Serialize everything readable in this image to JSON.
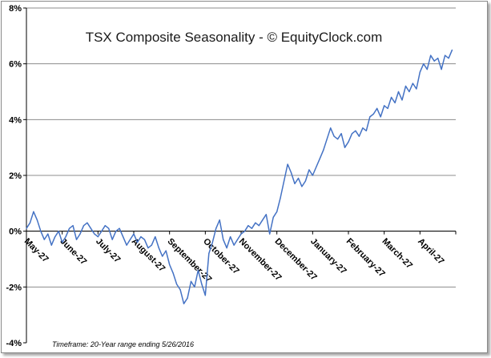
{
  "chart_data": {
    "type": "line",
    "title": "TSX Composite Seasonality - © EquityClock.com",
    "footnote": "Timeframe: 20-Year range ending 5/26/2016",
    "xlabel": "",
    "ylabel": "",
    "ylim": [
      -4,
      8
    ],
    "yticks": [
      {
        "value": 8,
        "label": "8%"
      },
      {
        "value": 6,
        "label": "6%"
      },
      {
        "value": 4,
        "label": "4%"
      },
      {
        "value": 2,
        "label": "2%"
      },
      {
        "value": 0,
        "label": "0%"
      },
      {
        "value": -2,
        "label": "-2%"
      },
      {
        "value": -4,
        "label": "-4%"
      }
    ],
    "xticks": [
      "May-27",
      "June-27",
      "July-27",
      "August-27",
      "September-27",
      "October-27",
      "November-27",
      "December-27",
      "January-27",
      "February-27",
      "March-27",
      "April-27"
    ],
    "grid": "horizontal",
    "line_color": "#4472C4",
    "series": [
      {
        "name": "",
        "x": [
          0,
          0.1,
          0.2,
          0.3,
          0.4,
          0.5,
          0.6,
          0.7,
          0.8,
          0.9,
          1.0,
          1.1,
          1.2,
          1.3,
          1.4,
          1.5,
          1.6,
          1.7,
          1.8,
          1.9,
          2.0,
          2.1,
          2.2,
          2.3,
          2.4,
          2.5,
          2.6,
          2.7,
          2.8,
          2.9,
          3.0,
          3.1,
          3.2,
          3.3,
          3.4,
          3.5,
          3.6,
          3.7,
          3.8,
          3.9,
          4.0,
          4.1,
          4.2,
          4.3,
          4.4,
          4.5,
          4.6,
          4.7,
          4.8,
          4.9,
          5.0,
          5.1,
          5.2,
          5.3,
          5.4,
          5.5,
          5.6,
          5.7,
          5.8,
          5.9,
          6.0,
          6.1,
          6.2,
          6.3,
          6.4,
          6.5,
          6.6,
          6.7,
          6.8,
          6.9,
          7.0,
          7.1,
          7.2,
          7.3,
          7.4,
          7.5,
          7.6,
          7.7,
          7.8,
          7.9,
          8.0,
          8.1,
          8.2,
          8.3,
          8.4,
          8.5,
          8.6,
          8.7,
          8.8,
          8.9,
          9.0,
          9.1,
          9.2,
          9.3,
          9.4,
          9.5,
          9.6,
          9.7,
          9.8,
          9.9,
          10.0,
          10.1,
          10.2,
          10.3,
          10.4,
          10.5,
          10.6,
          10.7,
          10.8,
          10.9,
          11.0,
          11.1,
          11.2,
          11.3,
          11.4,
          11.5,
          11.6,
          11.7,
          11.8,
          11.9
        ],
        "y": [
          0.1,
          0.3,
          0.7,
          0.4,
          0.0,
          -0.3,
          -0.1,
          -0.5,
          -0.2,
          0.0,
          -0.4,
          -0.2,
          0.1,
          0.2,
          -0.3,
          -0.1,
          0.2,
          0.3,
          0.1,
          -0.1,
          -0.2,
          0.0,
          0.2,
          0.1,
          -0.3,
          0.0,
          0.1,
          -0.2,
          -0.5,
          -0.3,
          -0.1,
          -0.4,
          -0.2,
          -0.3,
          -0.6,
          -0.5,
          -0.2,
          -0.6,
          -0.9,
          -0.7,
          -1.2,
          -1.5,
          -1.9,
          -2.1,
          -2.6,
          -2.4,
          -1.8,
          -2.0,
          -1.4,
          -1.9,
          -2.3,
          -0.8,
          -0.4,
          0.1,
          0.4,
          -0.3,
          -0.6,
          -0.2,
          -0.5,
          -0.3,
          -0.1,
          0.0,
          0.2,
          0.1,
          0.3,
          0.2,
          0.4,
          0.6,
          -0.1,
          0.5,
          0.7,
          1.2,
          1.8,
          2.4,
          2.1,
          1.7,
          1.9,
          1.6,
          1.8,
          2.2,
          2.0,
          2.3,
          2.6,
          2.9,
          3.3,
          3.7,
          3.4,
          3.3,
          3.5,
          3.0,
          3.2,
          3.5,
          3.6,
          3.4,
          3.7,
          3.6,
          4.1,
          4.2,
          4.4,
          4.1,
          4.5,
          4.4,
          4.8,
          4.6,
          5.0,
          4.7,
          5.2,
          5.0,
          5.3,
          5.1,
          5.7,
          6.0,
          5.8,
          6.3,
          6.1,
          6.2,
          5.8,
          6.3,
          6.2,
          6.5
        ]
      }
    ]
  }
}
